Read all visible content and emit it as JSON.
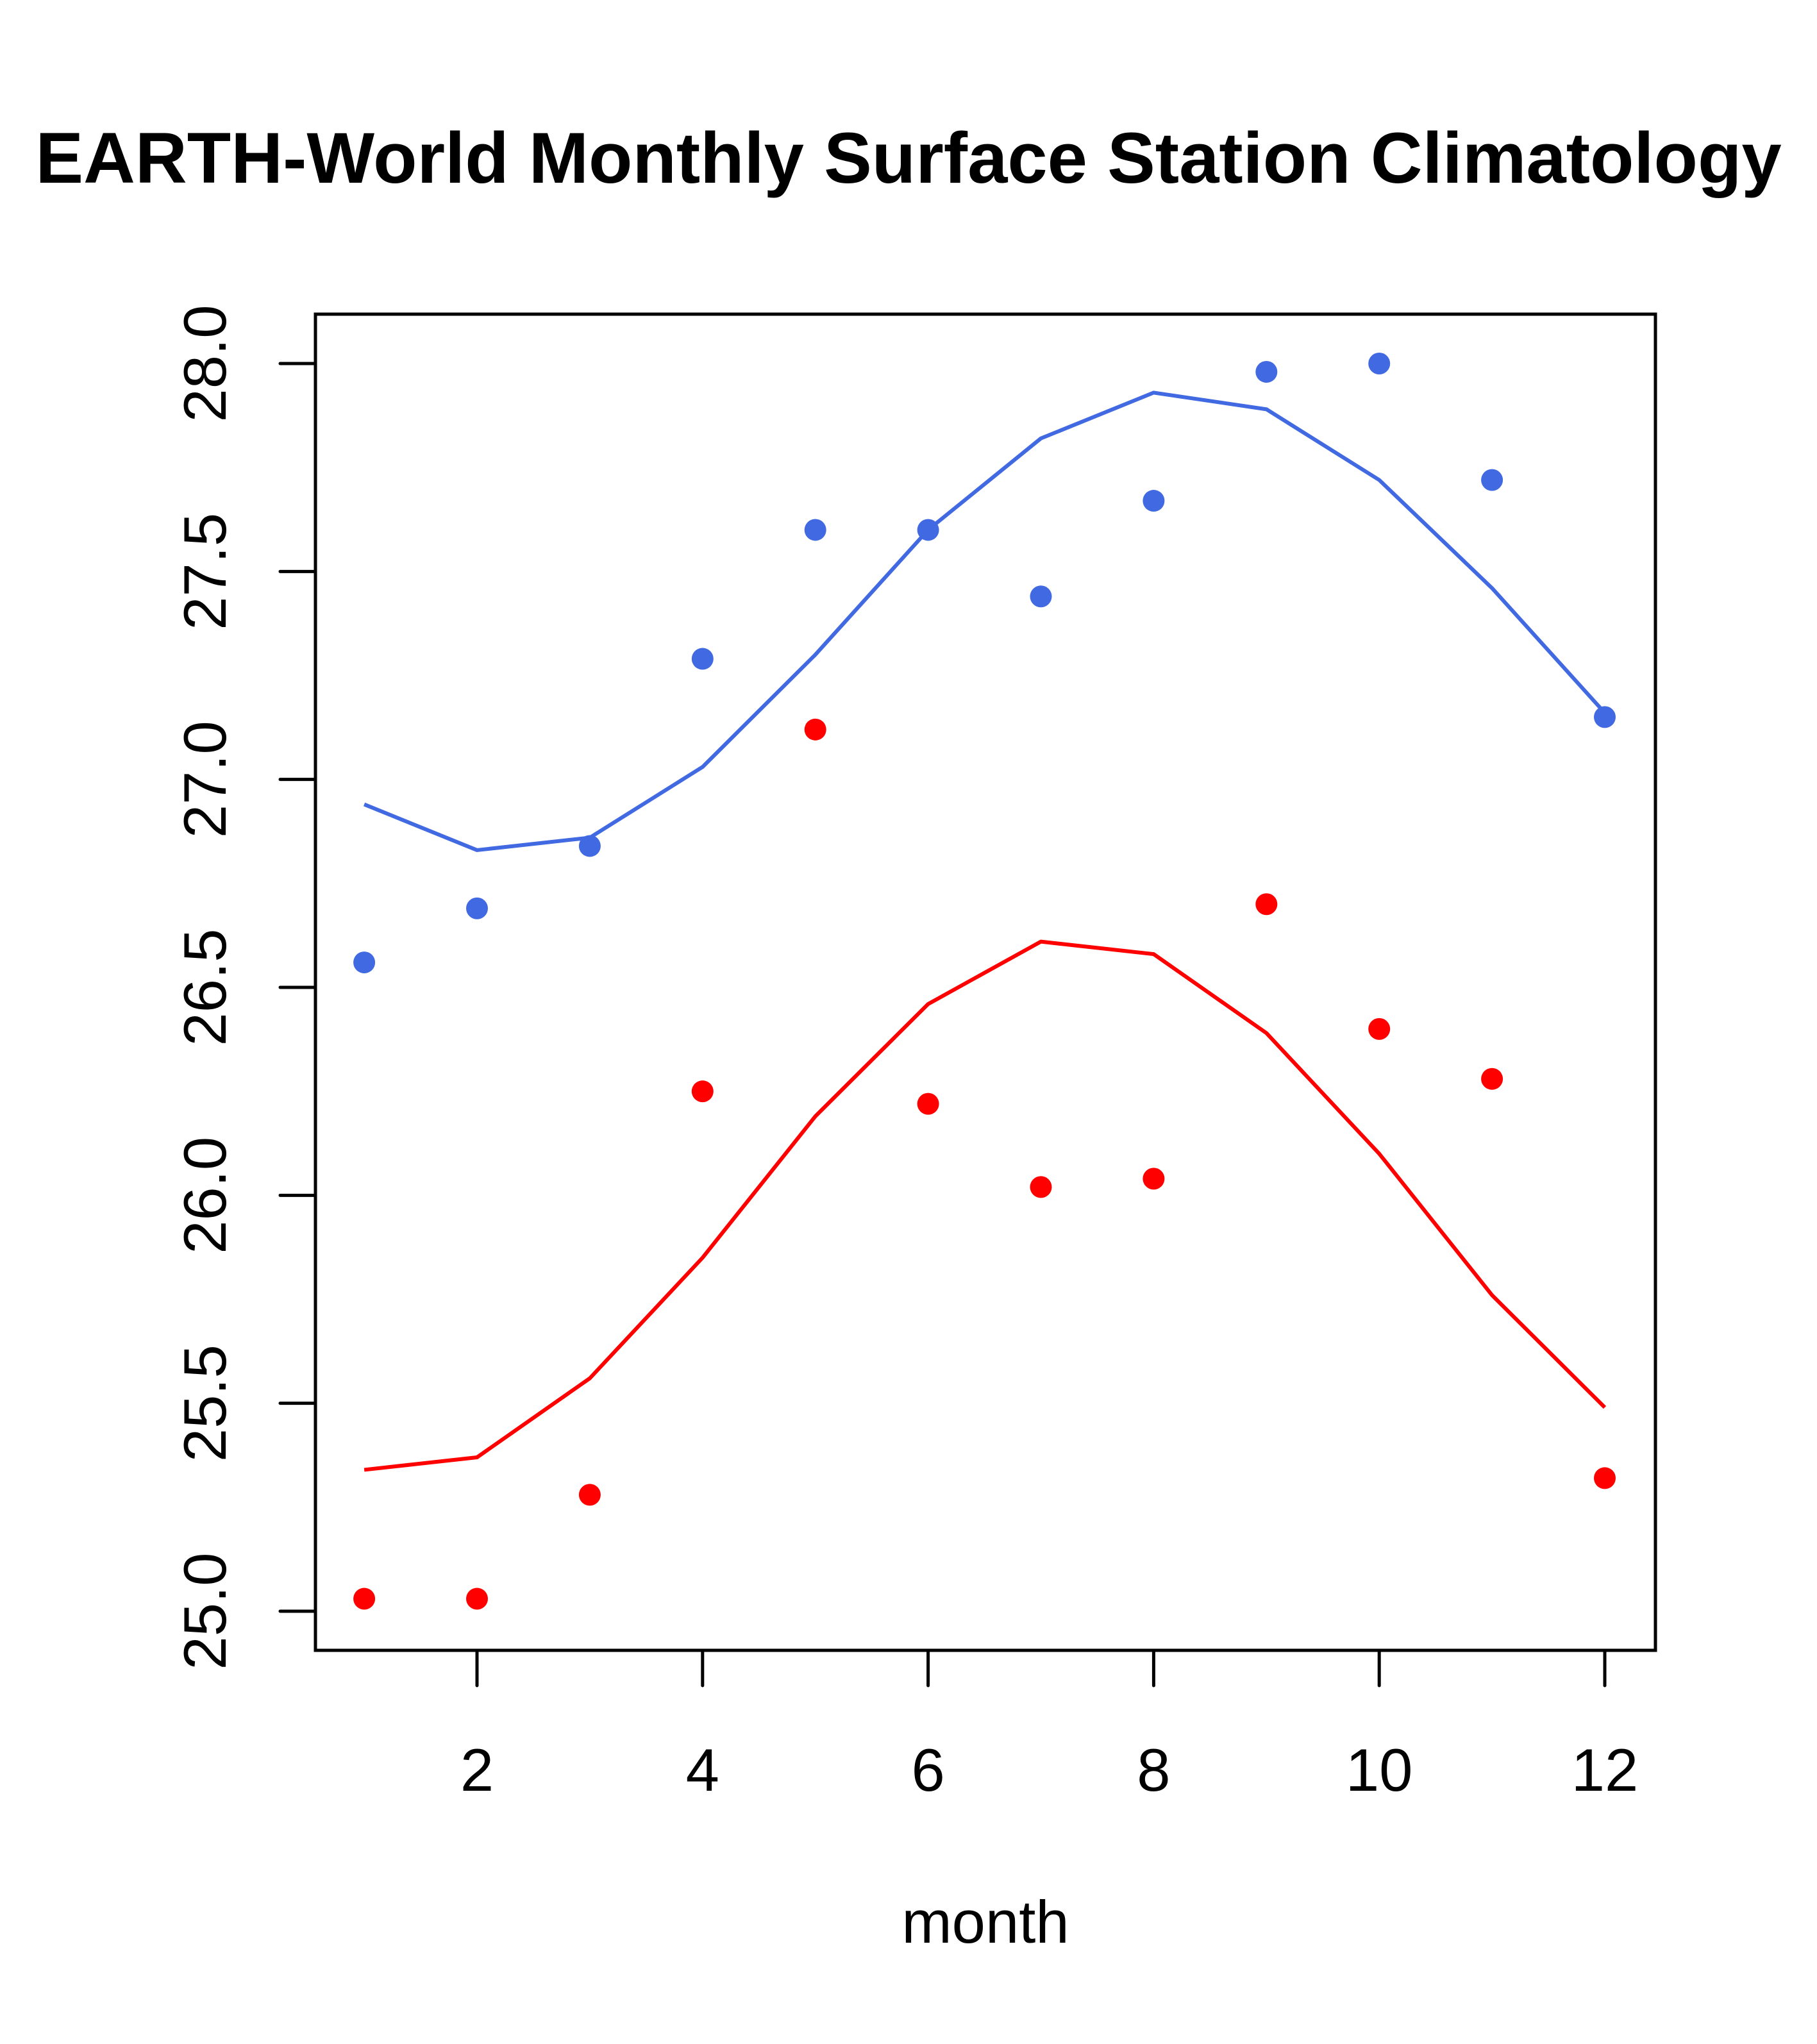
{
  "chart_data": {
    "type": "line",
    "title": "EARTH-World Monthly Surface Station Climatology",
    "xlabel": "month",
    "ylabel": "",
    "xlim": [
      0.72,
      12.6
    ],
    "ylim": [
      24.91,
      28.12
    ],
    "xticks": [
      2,
      4,
      6,
      8,
      10,
      12
    ],
    "xtick_labels": [
      "2",
      "4",
      "6",
      "8",
      "10",
      "12"
    ],
    "yticks": [
      25.0,
      25.5,
      26.0,
      26.5,
      27.0,
      27.5,
      28.0
    ],
    "ytick_labels": [
      "25.0",
      "25.5",
      "26.0",
      "26.5",
      "27.0",
      "27.5",
      "28.0"
    ],
    "grid": false,
    "legend": "none",
    "x": [
      1,
      2,
      3,
      4,
      5,
      6,
      7,
      8,
      9,
      10,
      11,
      12
    ],
    "series": [
      {
        "name": "blue-points",
        "kind": "scatter",
        "color": "#4169E1",
        "values": [
          26.56,
          26.69,
          26.84,
          27.29,
          27.6,
          27.6,
          27.44,
          27.67,
          27.98,
          28.0,
          27.72,
          27.15
        ]
      },
      {
        "name": "blue-line",
        "kind": "line",
        "color": "#4169E1",
        "values": [
          26.94,
          26.83,
          26.86,
          27.03,
          27.3,
          27.6,
          27.82,
          27.93,
          27.89,
          27.72,
          27.46,
          27.16
        ]
      },
      {
        "name": "red-points",
        "kind": "scatter",
        "color": "#FF0000",
        "values": [
          25.03,
          25.03,
          25.28,
          26.25,
          27.12,
          26.22,
          26.02,
          26.04,
          26.7,
          26.4,
          26.28,
          25.32
        ]
      },
      {
        "name": "red-line",
        "kind": "line",
        "color": "#FF0000",
        "values": [
          25.34,
          25.37,
          25.56,
          25.85,
          26.19,
          26.46,
          26.61,
          26.58,
          26.39,
          26.1,
          25.76,
          25.49
        ]
      }
    ]
  }
}
